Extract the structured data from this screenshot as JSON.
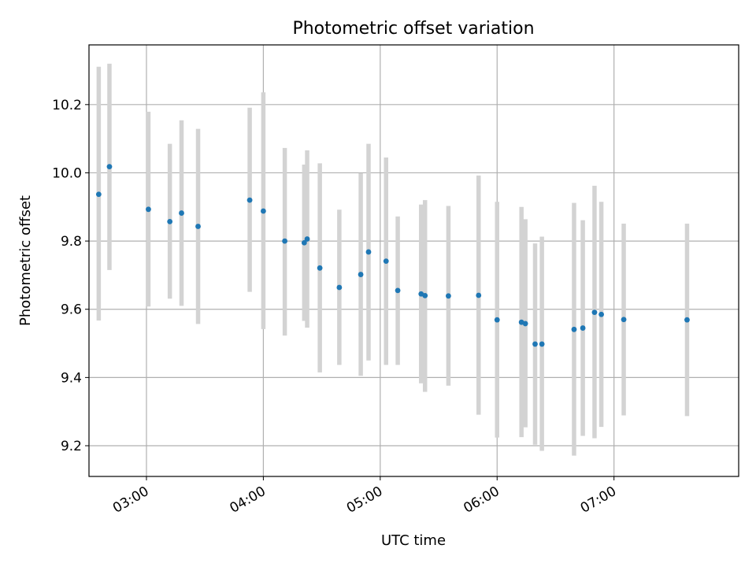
{
  "chart_data": {
    "type": "scatter",
    "title": "Photometric offset variation",
    "xlabel": "UTC time",
    "ylabel": "Photometric offset",
    "grid": true,
    "xlim_minutes_utc": [
      150.5,
      484.0
    ],
    "ylim": [
      9.11,
      10.375
    ],
    "x_ticks": [
      {
        "minutes": 180,
        "label": "03:00"
      },
      {
        "minutes": 240,
        "label": "04:00"
      },
      {
        "minutes": 300,
        "label": "05:00"
      },
      {
        "minutes": 360,
        "label": "06:00"
      },
      {
        "minutes": 420,
        "label": "07:00"
      }
    ],
    "y_ticks": [
      {
        "value": 9.2,
        "label": "9.2"
      },
      {
        "value": 9.4,
        "label": "9.4"
      },
      {
        "value": 9.6,
        "label": "9.6"
      },
      {
        "value": 9.8,
        "label": "9.8"
      },
      {
        "value": 10.0,
        "label": "10.0"
      },
      {
        "value": 10.2,
        "label": "10.2"
      }
    ],
    "point_color": "#1f77b4",
    "errorbar_color": "#d3d3d3",
    "points": [
      {
        "t": 155.5,
        "y": 9.937,
        "lo": 9.567,
        "hi": 10.311
      },
      {
        "t": 161.0,
        "y": 10.018,
        "lo": 9.715,
        "hi": 10.32
      },
      {
        "t": 181.0,
        "y": 9.893,
        "lo": 9.608,
        "hi": 10.179
      },
      {
        "t": 192.0,
        "y": 9.857,
        "lo": 9.631,
        "hi": 10.085
      },
      {
        "t": 198.0,
        "y": 9.882,
        "lo": 9.61,
        "hi": 10.154
      },
      {
        "t": 206.5,
        "y": 9.843,
        "lo": 9.557,
        "hi": 10.129
      },
      {
        "t": 233.0,
        "y": 9.92,
        "lo": 9.651,
        "hi": 10.191
      },
      {
        "t": 240.0,
        "y": 9.888,
        "lo": 9.542,
        "hi": 10.236
      },
      {
        "t": 251.0,
        "y": 9.8,
        "lo": 9.523,
        "hi": 10.073
      },
      {
        "t": 261.0,
        "y": 9.795,
        "lo": 9.566,
        "hi": 10.024
      },
      {
        "t": 262.5,
        "y": 9.806,
        "lo": 9.546,
        "hi": 10.066
      },
      {
        "t": 269.0,
        "y": 9.721,
        "lo": 9.415,
        "hi": 10.028
      },
      {
        "t": 279.0,
        "y": 9.664,
        "lo": 9.437,
        "hi": 9.892
      },
      {
        "t": 290.0,
        "y": 9.702,
        "lo": 9.405,
        "hi": 9.999
      },
      {
        "t": 294.0,
        "y": 9.768,
        "lo": 9.45,
        "hi": 10.085
      },
      {
        "t": 303.0,
        "y": 9.741,
        "lo": 9.437,
        "hi": 10.045
      },
      {
        "t": 309.0,
        "y": 9.655,
        "lo": 9.437,
        "hi": 9.872
      },
      {
        "t": 321.0,
        "y": 9.645,
        "lo": 9.383,
        "hi": 9.907
      },
      {
        "t": 323.0,
        "y": 9.64,
        "lo": 9.358,
        "hi": 9.92
      },
      {
        "t": 335.0,
        "y": 9.639,
        "lo": 9.376,
        "hi": 9.903
      },
      {
        "t": 350.5,
        "y": 9.641,
        "lo": 9.291,
        "hi": 9.992
      },
      {
        "t": 360.0,
        "y": 9.569,
        "lo": 9.224,
        "hi": 9.915
      },
      {
        "t": 372.5,
        "y": 9.562,
        "lo": 9.225,
        "hi": 9.9
      },
      {
        "t": 374.5,
        "y": 9.558,
        "lo": 9.254,
        "hi": 9.864
      },
      {
        "t": 379.5,
        "y": 9.498,
        "lo": 9.203,
        "hi": 9.793
      },
      {
        "t": 383.0,
        "y": 9.498,
        "lo": 9.185,
        "hi": 9.813
      },
      {
        "t": 399.5,
        "y": 9.541,
        "lo": 9.171,
        "hi": 9.912
      },
      {
        "t": 404.0,
        "y": 9.545,
        "lo": 9.229,
        "hi": 9.861
      },
      {
        "t": 410.0,
        "y": 9.591,
        "lo": 9.222,
        "hi": 9.962
      },
      {
        "t": 413.5,
        "y": 9.585,
        "lo": 9.255,
        "hi": 9.915
      },
      {
        "t": 425.0,
        "y": 9.57,
        "lo": 9.289,
        "hi": 9.851
      },
      {
        "t": 457.5,
        "y": 9.569,
        "lo": 9.287,
        "hi": 9.851
      }
    ]
  }
}
